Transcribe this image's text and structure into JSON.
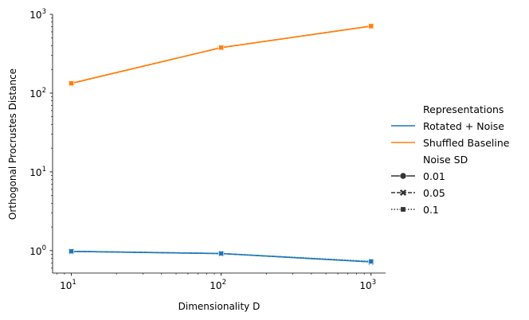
{
  "chart_data": {
    "type": "line",
    "xlabel": "Dimensionality D",
    "ylabel": "Orthogonal Procrustes Distance",
    "x_scale": "log",
    "y_scale": "log",
    "xlim": [
      7.5,
      1250
    ],
    "ylim": [
      0.52,
      1000
    ],
    "x_ticks": [
      {
        "value": 10,
        "base": "10",
        "exp": "1"
      },
      {
        "value": 100,
        "base": "10",
        "exp": "2"
      },
      {
        "value": 1000,
        "base": "10",
        "exp": "3"
      }
    ],
    "y_ticks": [
      {
        "value": 1,
        "base": "10",
        "exp": "0"
      },
      {
        "value": 10,
        "base": "10",
        "exp": "1"
      },
      {
        "value": 100,
        "base": "10",
        "exp": "2"
      },
      {
        "value": 1000,
        "base": "10",
        "exp": "3"
      }
    ],
    "grid": false,
    "legend_placement": "right",
    "series": [
      {
        "representation": "Rotated + Noise",
        "noise_sd": "0.01",
        "color": "#1f77b4",
        "marker": "circle",
        "dash": "solid",
        "x": [
          10,
          100,
          1000
        ],
        "y": [
          0.98,
          0.92,
          0.72
        ]
      },
      {
        "representation": "Rotated + Noise",
        "noise_sd": "0.05",
        "color": "#1f77b4",
        "marker": "x",
        "dash": "dashed",
        "x": [
          10,
          100,
          1000
        ],
        "y": [
          0.98,
          0.92,
          0.72
        ]
      },
      {
        "representation": "Rotated + Noise",
        "noise_sd": "0.1",
        "color": "#1f77b4",
        "marker": "square",
        "dash": "dotted",
        "x": [
          10,
          100,
          1000
        ],
        "y": [
          0.98,
          0.92,
          0.73
        ]
      },
      {
        "representation": "Shuffled Baseline",
        "noise_sd": "0.01",
        "color": "#ff7f0e",
        "marker": "circle",
        "dash": "solid",
        "x": [
          10,
          100,
          1000
        ],
        "y": [
          133,
          378,
          708
        ]
      },
      {
        "representation": "Shuffled Baseline",
        "noise_sd": "0.05",
        "color": "#ff7f0e",
        "marker": "x",
        "dash": "dashed",
        "x": [
          10,
          100,
          1000
        ],
        "y": [
          133,
          378,
          708
        ]
      },
      {
        "representation": "Shuffled Baseline",
        "noise_sd": "0.1",
        "color": "#ff7f0e",
        "marker": "square",
        "dash": "dotted",
        "x": [
          10,
          100,
          1000
        ],
        "y": [
          133,
          378,
          708
        ]
      }
    ],
    "legend": {
      "hue_title": "Representations",
      "hue_items": [
        {
          "label": "Rotated + Noise",
          "color": "#1f77b4"
        },
        {
          "label": "Shuffled Baseline",
          "color": "#ff7f0e"
        }
      ],
      "style_title": "Noise SD",
      "style_items": [
        {
          "label": "0.01",
          "marker": "circle",
          "dash": "solid"
        },
        {
          "label": "0.05",
          "marker": "x",
          "dash": "dashed"
        },
        {
          "label": "0.1",
          "marker": "square",
          "dash": "dotted"
        }
      ]
    }
  }
}
